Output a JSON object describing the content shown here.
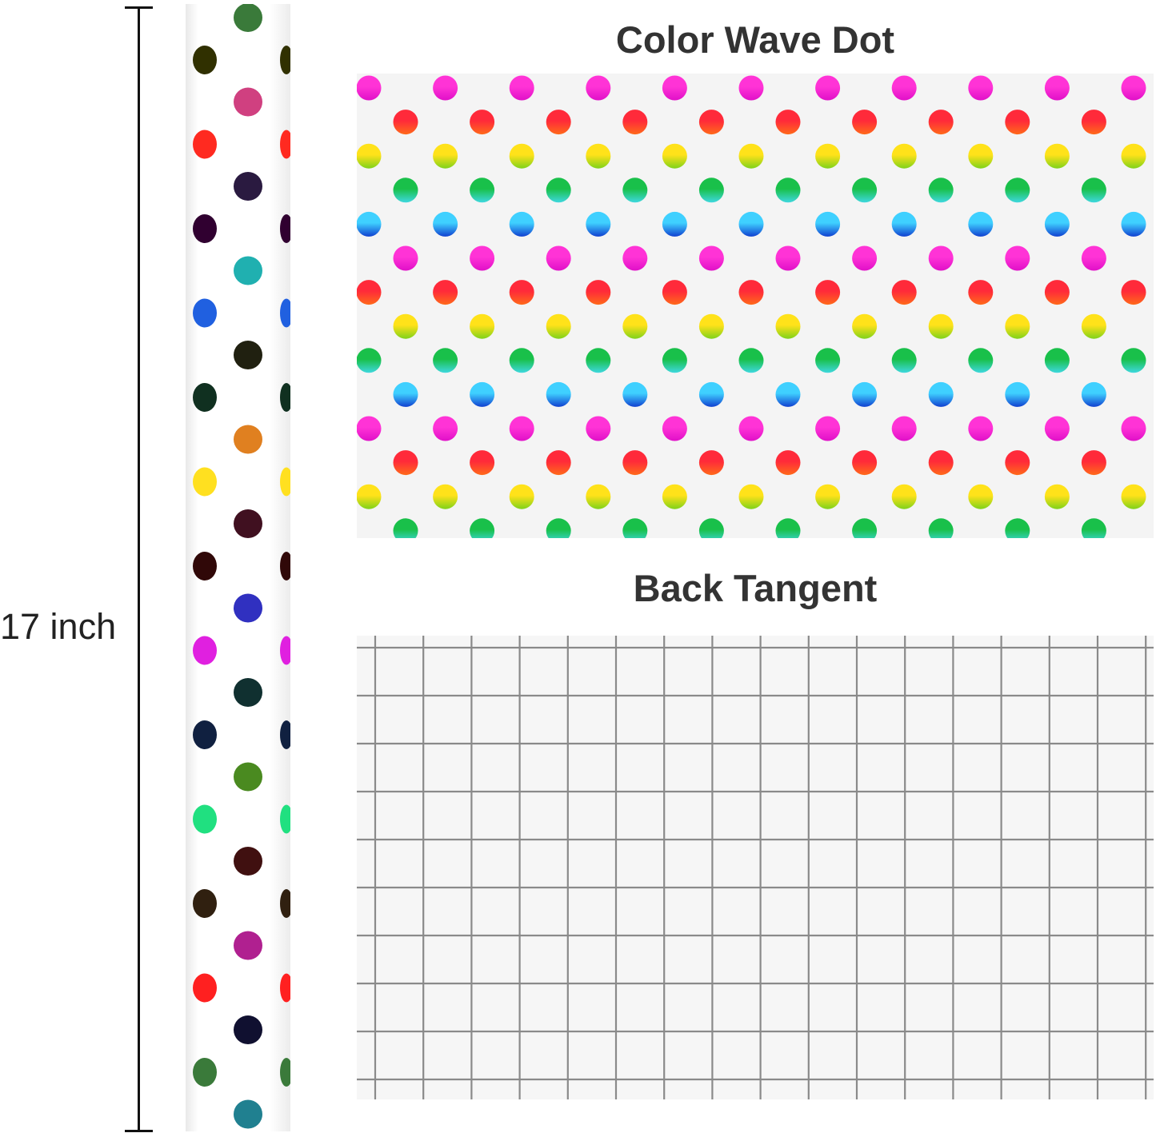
{
  "dimension": {
    "label": "17 inch"
  },
  "patterns": [
    {
      "title": "Color Wave Dot",
      "row_colors": [
        [
          "#ff33d6",
          "#e010c8"
        ],
        [
          "#ff2a3a",
          "#ff6a1a"
        ],
        [
          "#ffe21a",
          "#7fd21a"
        ],
        [
          "#19c04a",
          "#3fd8e0"
        ],
        [
          "#3fd0ff",
          "#1040d0"
        ]
      ]
    },
    {
      "title": "Back Tangent",
      "line_color": "#8a8a8a"
    }
  ],
  "roll": {
    "dot_colors": [
      "#3a7a3a",
      "#d04080",
      "#2a1a40",
      "#20b0b0",
      "#202010",
      "#e08020",
      "#401020",
      "#3030c0",
      "#103030",
      "#4a8a20",
      "#401010",
      "#b02090",
      "#101030",
      "#208090",
      "#303000",
      "#ff2a20",
      "#300030",
      "#2060e0",
      "#103020",
      "#ffe020",
      "#300808",
      "#e020e0",
      "#102040",
      "#20e080",
      "#302010",
      "#ff2020"
    ]
  }
}
